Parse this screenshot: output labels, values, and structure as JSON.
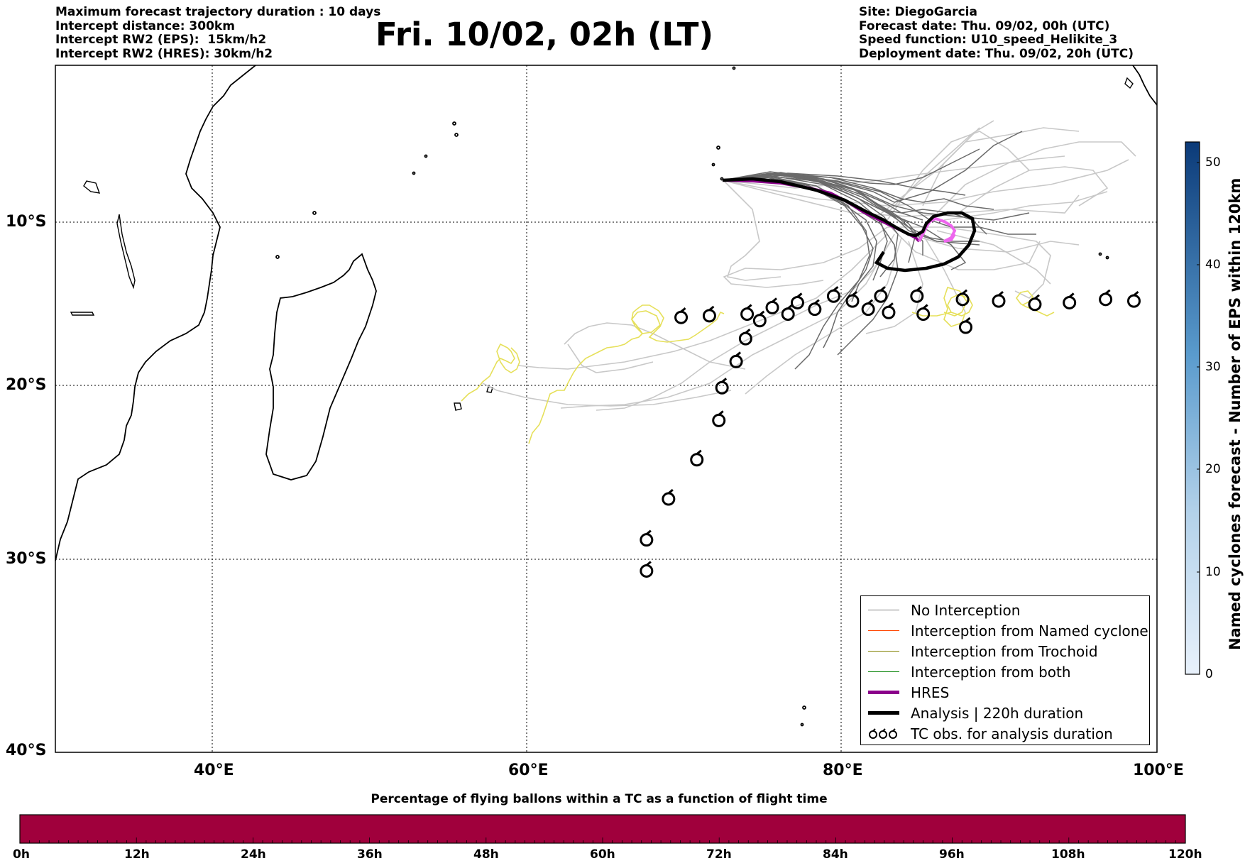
{
  "header_left": [
    "Maximum forecast trajectory duration : 10 days",
    "Intercept distance: 300km",
    "Intercept RW2 (EPS):  15km/h2",
    "Intercept RW2 (HRES): 30km/h2"
  ],
  "title": "Fri. 10/02, 02h (LT)",
  "header_right": [
    "Site: DiegoGarcia",
    "Forecast date: Thu. 09/02, 00h (UTC)",
    "Speed function: U10_speed_Helikite_3",
    "Deployment date: Thu. 09/02, 20h (UTC)"
  ],
  "map": {
    "lat_labels": [
      "10°S",
      "20°S",
      "30°S",
      "40°S"
    ],
    "lon_labels": [
      "40°E",
      "60°E",
      "80°E",
      "100°E"
    ],
    "lon_range": [
      30,
      100
    ],
    "lat_range": [
      -40,
      0
    ]
  },
  "legend": {
    "items": [
      {
        "label": "No Interception",
        "color": "#7f7f7f",
        "kind": "line",
        "width": 1.5
      },
      {
        "label": "Interception from Named cyclone",
        "color": "#ff4500",
        "kind": "line",
        "width": 1.5
      },
      {
        "label": "Interception from Trochoid",
        "color": "#808000",
        "kind": "line",
        "width": 1.5
      },
      {
        "label": "Interception from both",
        "color": "#008000",
        "kind": "line",
        "width": 1.5
      },
      {
        "label": "HRES",
        "color": "#8b008b",
        "kind": "line",
        "width": 5
      },
      {
        "label": "Analysis | 220h duration",
        "color": "#000000",
        "kind": "line",
        "width": 5
      },
      {
        "label": "TC obs. for analysis duration",
        "color": "#000000",
        "kind": "cyclone"
      }
    ]
  },
  "colorbar_right": {
    "label": "Named cyclones forecast - Number of EPS within 120km",
    "ticks": [
      "0",
      "10",
      "20",
      "30",
      "40",
      "50"
    ],
    "min": 0,
    "max": 52,
    "color_low": "#e8f1fb",
    "color_high": "#0b3a78"
  },
  "colorbar_bottom": {
    "title": "Percentage of flying ballons within a TC as a function of flight time",
    "ticks": [
      "0h",
      "12h",
      "24h",
      "36h",
      "48h",
      "60h",
      "72h",
      "84h",
      "96h",
      "108h",
      "120h"
    ],
    "fill_color": "#a0003c"
  },
  "cyclone_obs": [
    [
      67.6,
      -31.3
    ],
    [
      67.6,
      -29.4
    ],
    [
      69.0,
      -26.9
    ],
    [
      70.8,
      -24.5
    ],
    [
      72.2,
      -22.1
    ],
    [
      72.4,
      -20.1
    ],
    [
      73.3,
      -18.5
    ],
    [
      73.9,
      -17.1
    ],
    [
      74.8,
      -16.0
    ],
    [
      75.6,
      -15.2
    ],
    [
      76.6,
      -15.6
    ],
    [
      77.2,
      -14.9
    ],
    [
      78.3,
      -15.3
    ],
    [
      79.5,
      -14.5
    ],
    [
      80.7,
      -14.8
    ],
    [
      81.7,
      -15.3
    ],
    [
      82.5,
      -14.5
    ],
    [
      83.0,
      -15.5
    ],
    [
      84.8,
      -14.5
    ],
    [
      85.2,
      -15.6
    ],
    [
      87.7,
      -14.7
    ],
    [
      87.9,
      -16.4
    ],
    [
      90.0,
      -14.8
    ],
    [
      92.3,
      -15.0
    ],
    [
      94.5,
      -14.9
    ],
    [
      96.8,
      -14.7
    ],
    [
      98.6,
      -14.8
    ],
    [
      69.8,
      -15.8
    ],
    [
      71.6,
      -15.7
    ],
    [
      74.0,
      -15.6
    ]
  ]
}
